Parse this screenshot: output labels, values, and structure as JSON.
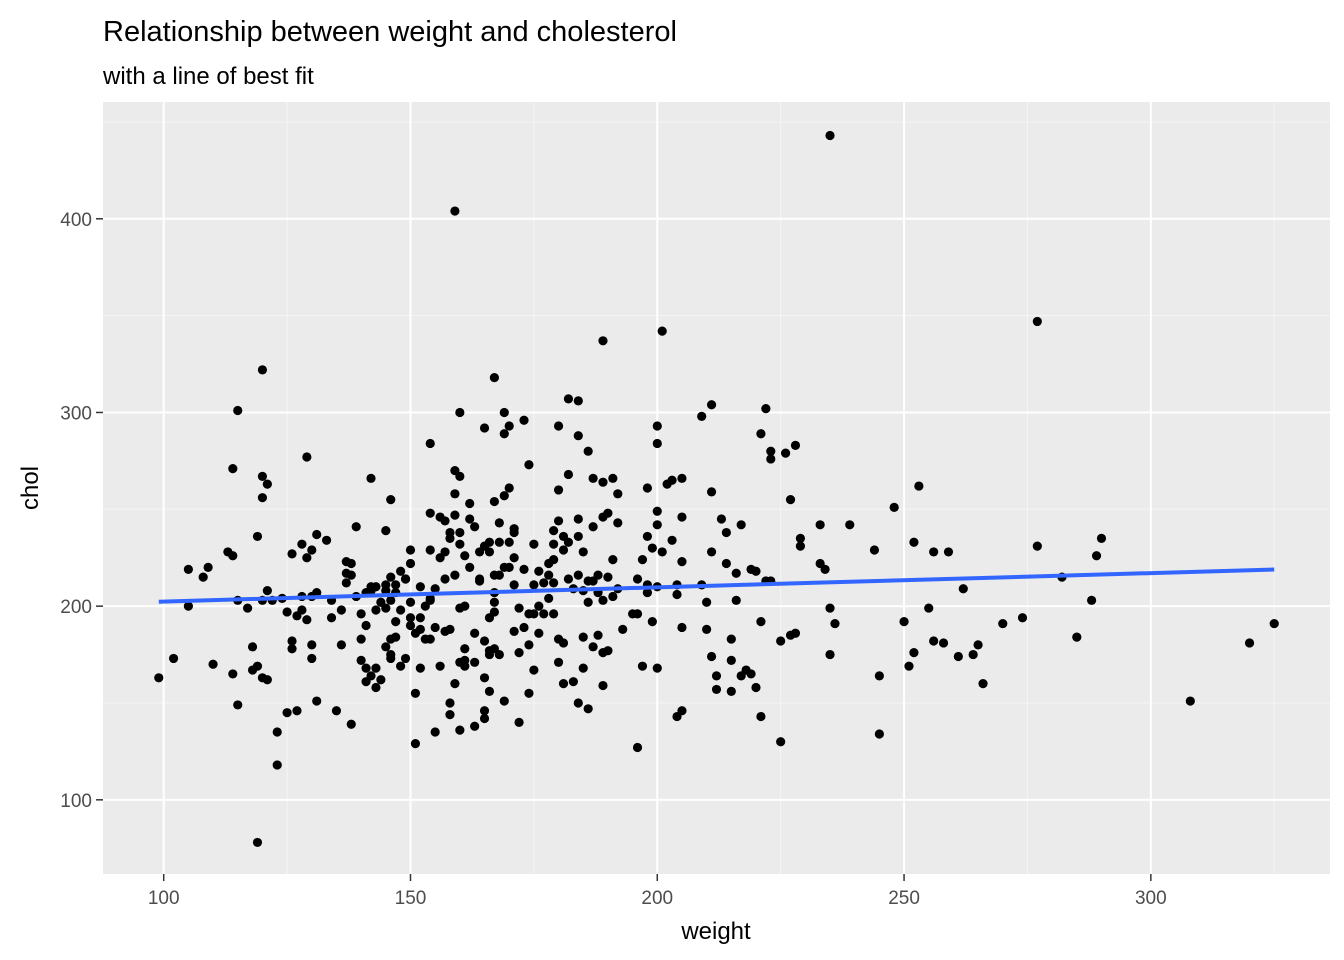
{
  "chart_data": {
    "type": "scatter",
    "title": "Relationship between weight and cholesterol",
    "subtitle": "with a line of best fit",
    "xlabel": "weight",
    "ylabel": "chol",
    "xlim": [
      87.7,
      336.3
    ],
    "ylim": [
      61.7,
      460.3
    ],
    "x_ticks": [
      100,
      150,
      200,
      250,
      300
    ],
    "y_ticks": [
      100,
      200,
      300,
      400
    ],
    "x_tick_labels": [
      "100",
      "150",
      "200",
      "250",
      "300"
    ],
    "y_tick_labels": [
      "100",
      "200",
      "300",
      "400"
    ],
    "grid": true,
    "legend": "none",
    "colors": {
      "panel_background": "#ebebeb",
      "grid_major": "#ffffff",
      "grid_minor": "#f5f5f5",
      "points": "#000000",
      "fit_line": "#3366ff"
    },
    "fit_line": {
      "method": "lm",
      "x": [
        99,
        325
      ],
      "y": [
        202.3,
        218.9
      ]
    },
    "points": [
      [
        99,
        163
      ],
      [
        102,
        173
      ],
      [
        105,
        200
      ],
      [
        105,
        219
      ],
      [
        108,
        215
      ],
      [
        109,
        220
      ],
      [
        110,
        170
      ],
      [
        113,
        228
      ],
      [
        114,
        226
      ],
      [
        114,
        271
      ],
      [
        114,
        165
      ],
      [
        115,
        203
      ],
      [
        115,
        149
      ],
      [
        115,
        301
      ],
      [
        117,
        199
      ],
      [
        118,
        167
      ],
      [
        118,
        179
      ],
      [
        119,
        236
      ],
      [
        119,
        78
      ],
      [
        119,
        169
      ],
      [
        120,
        322
      ],
      [
        120,
        267
      ],
      [
        120,
        256
      ],
      [
        120,
        203
      ],
      [
        120,
        163
      ],
      [
        121,
        263
      ],
      [
        121,
        208
      ],
      [
        121,
        162
      ],
      [
        122,
        203
      ],
      [
        123,
        135
      ],
      [
        123,
        118
      ],
      [
        124,
        204
      ],
      [
        125,
        197
      ],
      [
        125,
        145
      ],
      [
        126,
        227
      ],
      [
        126,
        182
      ],
      [
        126,
        178
      ],
      [
        127,
        146
      ],
      [
        127,
        195
      ],
      [
        128,
        232
      ],
      [
        128,
        198
      ],
      [
        128,
        205
      ],
      [
        129,
        277
      ],
      [
        129,
        225
      ],
      [
        129,
        193
      ],
      [
        130,
        229
      ],
      [
        130,
        205
      ],
      [
        130,
        180
      ],
      [
        130,
        173
      ],
      [
        131,
        237
      ],
      [
        131,
        151
      ],
      [
        131,
        207
      ],
      [
        133,
        234
      ],
      [
        134,
        203
      ],
      [
        134,
        194
      ],
      [
        135,
        146
      ],
      [
        136,
        180
      ],
      [
        136,
        198
      ],
      [
        137,
        217
      ],
      [
        137,
        212
      ],
      [
        137,
        223
      ],
      [
        138,
        222
      ],
      [
        138,
        216
      ],
      [
        138,
        139
      ],
      [
        139,
        205
      ],
      [
        139,
        241
      ],
      [
        140,
        183
      ],
      [
        140,
        172
      ],
      [
        140,
        196
      ],
      [
        141,
        161
      ],
      [
        141,
        168
      ],
      [
        141,
        190
      ],
      [
        141,
        207
      ],
      [
        142,
        208
      ],
      [
        142,
        164
      ],
      [
        142,
        210
      ],
      [
        142,
        266
      ],
      [
        143,
        198
      ],
      [
        143,
        210
      ],
      [
        143,
        158
      ],
      [
        143,
        168
      ],
      [
        144,
        162
      ],
      [
        144,
        202
      ],
      [
        145,
        208
      ],
      [
        145,
        239
      ],
      [
        145,
        179
      ],
      [
        145,
        211
      ],
      [
        145,
        199
      ],
      [
        146,
        175
      ],
      [
        146,
        183
      ],
      [
        146,
        215
      ],
      [
        146,
        255
      ],
      [
        146,
        203
      ],
      [
        146,
        173
      ],
      [
        147,
        192
      ],
      [
        147,
        207
      ],
      [
        147,
        211
      ],
      [
        147,
        184
      ],
      [
        148,
        198
      ],
      [
        148,
        218
      ],
      [
        148,
        169
      ],
      [
        149,
        214
      ],
      [
        149,
        173
      ],
      [
        149,
        214
      ],
      [
        150,
        229
      ],
      [
        150,
        194
      ],
      [
        150,
        222
      ],
      [
        150,
        202
      ],
      [
        150,
        190
      ],
      [
        151,
        155
      ],
      [
        151,
        129
      ],
      [
        151,
        186
      ],
      [
        152,
        194
      ],
      [
        152,
        168
      ],
      [
        152,
        210
      ],
      [
        152,
        188
      ],
      [
        153,
        200
      ],
      [
        153,
        183
      ],
      [
        154,
        183
      ],
      [
        154,
        284
      ],
      [
        154,
        204
      ],
      [
        154,
        229
      ],
      [
        154,
        248
      ],
      [
        154,
        203
      ],
      [
        155,
        135
      ],
      [
        155,
        189
      ],
      [
        155,
        209
      ],
      [
        156,
        225
      ],
      [
        156,
        246
      ],
      [
        156,
        169
      ],
      [
        157,
        187
      ],
      [
        157,
        228
      ],
      [
        157,
        244
      ],
      [
        157,
        214
      ],
      [
        158,
        235
      ],
      [
        158,
        238
      ],
      [
        158,
        144
      ],
      [
        158,
        188
      ],
      [
        158,
        150
      ],
      [
        159,
        270
      ],
      [
        159,
        216
      ],
      [
        159,
        258
      ],
      [
        159,
        247
      ],
      [
        159,
        160
      ],
      [
        159,
        404
      ],
      [
        160,
        171
      ],
      [
        160,
        267
      ],
      [
        160,
        238
      ],
      [
        160,
        232
      ],
      [
        160,
        199
      ],
      [
        160,
        300
      ],
      [
        160,
        136
      ],
      [
        161,
        200
      ],
      [
        161,
        169
      ],
      [
        161,
        226
      ],
      [
        161,
        178
      ],
      [
        161,
        172
      ],
      [
        162,
        220
      ],
      [
        162,
        245
      ],
      [
        162,
        253
      ],
      [
        163,
        241
      ],
      [
        163,
        186
      ],
      [
        163,
        171
      ],
      [
        163,
        138
      ],
      [
        164,
        228
      ],
      [
        164,
        214
      ],
      [
        164,
        213
      ],
      [
        165,
        292
      ],
      [
        165,
        231
      ],
      [
        165,
        182
      ],
      [
        165,
        142
      ],
      [
        165,
        146
      ],
      [
        165,
        163
      ],
      [
        166,
        228
      ],
      [
        166,
        233
      ],
      [
        166,
        175
      ],
      [
        166,
        156
      ],
      [
        166,
        177
      ],
      [
        166,
        194
      ],
      [
        167,
        318
      ],
      [
        167,
        254
      ],
      [
        167,
        216
      ],
      [
        167,
        207
      ],
      [
        167,
        197
      ],
      [
        167,
        178
      ],
      [
        167,
        202
      ],
      [
        168,
        243
      ],
      [
        168,
        233
      ],
      [
        168,
        216
      ],
      [
        168,
        175
      ],
      [
        169,
        300
      ],
      [
        169,
        289
      ],
      [
        169,
        257
      ],
      [
        169,
        220
      ],
      [
        169,
        151
      ],
      [
        170,
        293
      ],
      [
        170,
        261
      ],
      [
        170,
        233
      ],
      [
        170,
        220
      ],
      [
        171,
        240
      ],
      [
        171,
        238
      ],
      [
        171,
        225
      ],
      [
        171,
        211
      ],
      [
        171,
        187
      ],
      [
        172,
        199
      ],
      [
        172,
        176
      ],
      [
        172,
        140
      ],
      [
        173,
        296
      ],
      [
        173,
        219
      ],
      [
        173,
        189
      ],
      [
        174,
        196
      ],
      [
        174,
        155
      ],
      [
        174,
        180
      ],
      [
        174,
        273
      ],
      [
        175,
        232
      ],
      [
        175,
        211
      ],
      [
        175,
        196
      ],
      [
        175,
        167
      ],
      [
        176,
        218
      ],
      [
        176,
        200
      ],
      [
        176,
        186
      ],
      [
        177,
        212
      ],
      [
        177,
        196
      ],
      [
        178,
        216
      ],
      [
        178,
        222
      ],
      [
        178,
        204
      ],
      [
        179,
        239
      ],
      [
        179,
        232
      ],
      [
        179,
        224
      ],
      [
        179,
        212
      ],
      [
        179,
        196
      ],
      [
        180,
        293
      ],
      [
        180,
        260
      ],
      [
        180,
        244
      ],
      [
        180,
        183
      ],
      [
        180,
        171
      ],
      [
        181,
        236
      ],
      [
        181,
        229
      ],
      [
        181,
        181
      ],
      [
        181,
        160
      ],
      [
        182,
        307
      ],
      [
        182,
        268
      ],
      [
        182,
        233
      ],
      [
        182,
        214
      ],
      [
        183,
        209
      ],
      [
        183,
        161
      ],
      [
        184,
        306
      ],
      [
        184,
        288
      ],
      [
        184,
        245
      ],
      [
        184,
        236
      ],
      [
        184,
        216
      ],
      [
        184,
        150
      ],
      [
        185,
        228
      ],
      [
        185,
        208
      ],
      [
        185,
        184
      ],
      [
        185,
        168
      ],
      [
        186,
        280
      ],
      [
        186,
        213
      ],
      [
        186,
        202
      ],
      [
        186,
        147
      ],
      [
        187,
        266
      ],
      [
        187,
        241
      ],
      [
        187,
        213
      ],
      [
        187,
        179
      ],
      [
        188,
        216
      ],
      [
        188,
        207
      ],
      [
        188,
        185
      ],
      [
        189,
        337
      ],
      [
        189,
        264
      ],
      [
        189,
        246
      ],
      [
        189,
        203
      ],
      [
        189,
        176
      ],
      [
        189,
        159
      ],
      [
        190,
        248
      ],
      [
        190,
        215
      ],
      [
        190,
        177
      ],
      [
        191,
        266
      ],
      [
        191,
        224
      ],
      [
        191,
        205
      ],
      [
        192,
        258
      ],
      [
        192,
        243
      ],
      [
        192,
        209
      ],
      [
        193,
        188
      ],
      [
        195,
        196
      ],
      [
        196,
        214
      ],
      [
        196,
        196
      ],
      [
        196,
        127
      ],
      [
        197,
        224
      ],
      [
        197,
        169
      ],
      [
        198,
        261
      ],
      [
        198,
        236
      ],
      [
        198,
        211
      ],
      [
        198,
        207
      ],
      [
        199,
        230
      ],
      [
        199,
        192
      ],
      [
        200,
        293
      ],
      [
        200,
        284
      ],
      [
        200,
        249
      ],
      [
        200,
        242
      ],
      [
        200,
        210
      ],
      [
        200,
        168
      ],
      [
        201,
        342
      ],
      [
        201,
        228
      ],
      [
        202,
        263
      ],
      [
        203,
        265
      ],
      [
        203,
        234
      ],
      [
        204,
        211
      ],
      [
        204,
        206
      ],
      [
        204,
        143
      ],
      [
        205,
        266
      ],
      [
        205,
        246
      ],
      [
        205,
        223
      ],
      [
        205,
        189
      ],
      [
        205,
        146
      ],
      [
        209,
        298
      ],
      [
        209,
        211
      ],
      [
        210,
        202
      ],
      [
        210,
        188
      ],
      [
        211,
        304
      ],
      [
        211,
        259
      ],
      [
        211,
        228
      ],
      [
        211,
        174
      ],
      [
        212,
        164
      ],
      [
        212,
        157
      ],
      [
        213,
        245
      ],
      [
        214,
        238
      ],
      [
        214,
        222
      ],
      [
        215,
        183
      ],
      [
        215,
        172
      ],
      [
        215,
        156
      ],
      [
        216,
        217
      ],
      [
        216,
        203
      ],
      [
        217,
        242
      ],
      [
        217,
        164
      ],
      [
        218,
        167
      ],
      [
        219,
        219
      ],
      [
        219,
        165
      ],
      [
        220,
        218
      ],
      [
        220,
        158
      ],
      [
        221,
        289
      ],
      [
        221,
        192
      ],
      [
        221,
        143
      ],
      [
        222,
        302
      ],
      [
        222,
        213
      ],
      [
        223,
        280
      ],
      [
        223,
        276
      ],
      [
        223,
        213
      ],
      [
        225,
        182
      ],
      [
        225,
        130
      ],
      [
        226,
        279
      ],
      [
        227,
        255
      ],
      [
        227,
        185
      ],
      [
        228,
        283
      ],
      [
        228,
        186
      ],
      [
        229,
        235
      ],
      [
        229,
        231
      ],
      [
        233,
        242
      ],
      [
        233,
        222
      ],
      [
        234,
        219
      ],
      [
        235,
        443
      ],
      [
        235,
        199
      ],
      [
        235,
        175
      ],
      [
        236,
        191
      ],
      [
        239,
        242
      ],
      [
        244,
        229
      ],
      [
        245,
        164
      ],
      [
        245,
        134
      ],
      [
        248,
        251
      ],
      [
        250,
        192
      ],
      [
        251,
        169
      ],
      [
        252,
        233
      ],
      [
        252,
        176
      ],
      [
        253,
        262
      ],
      [
        255,
        199
      ],
      [
        256,
        182
      ],
      [
        256,
        228
      ],
      [
        258,
        181
      ],
      [
        259,
        228
      ],
      [
        261,
        174
      ],
      [
        262,
        209
      ],
      [
        264,
        175
      ],
      [
        265,
        180
      ],
      [
        266,
        160
      ],
      [
        270,
        191
      ],
      [
        274,
        194
      ],
      [
        277,
        347
      ],
      [
        277,
        231
      ],
      [
        282,
        215
      ],
      [
        285,
        184
      ],
      [
        288,
        203
      ],
      [
        289,
        226
      ],
      [
        290,
        235
      ],
      [
        308,
        151
      ],
      [
        320,
        181
      ],
      [
        325,
        191
      ]
    ]
  }
}
